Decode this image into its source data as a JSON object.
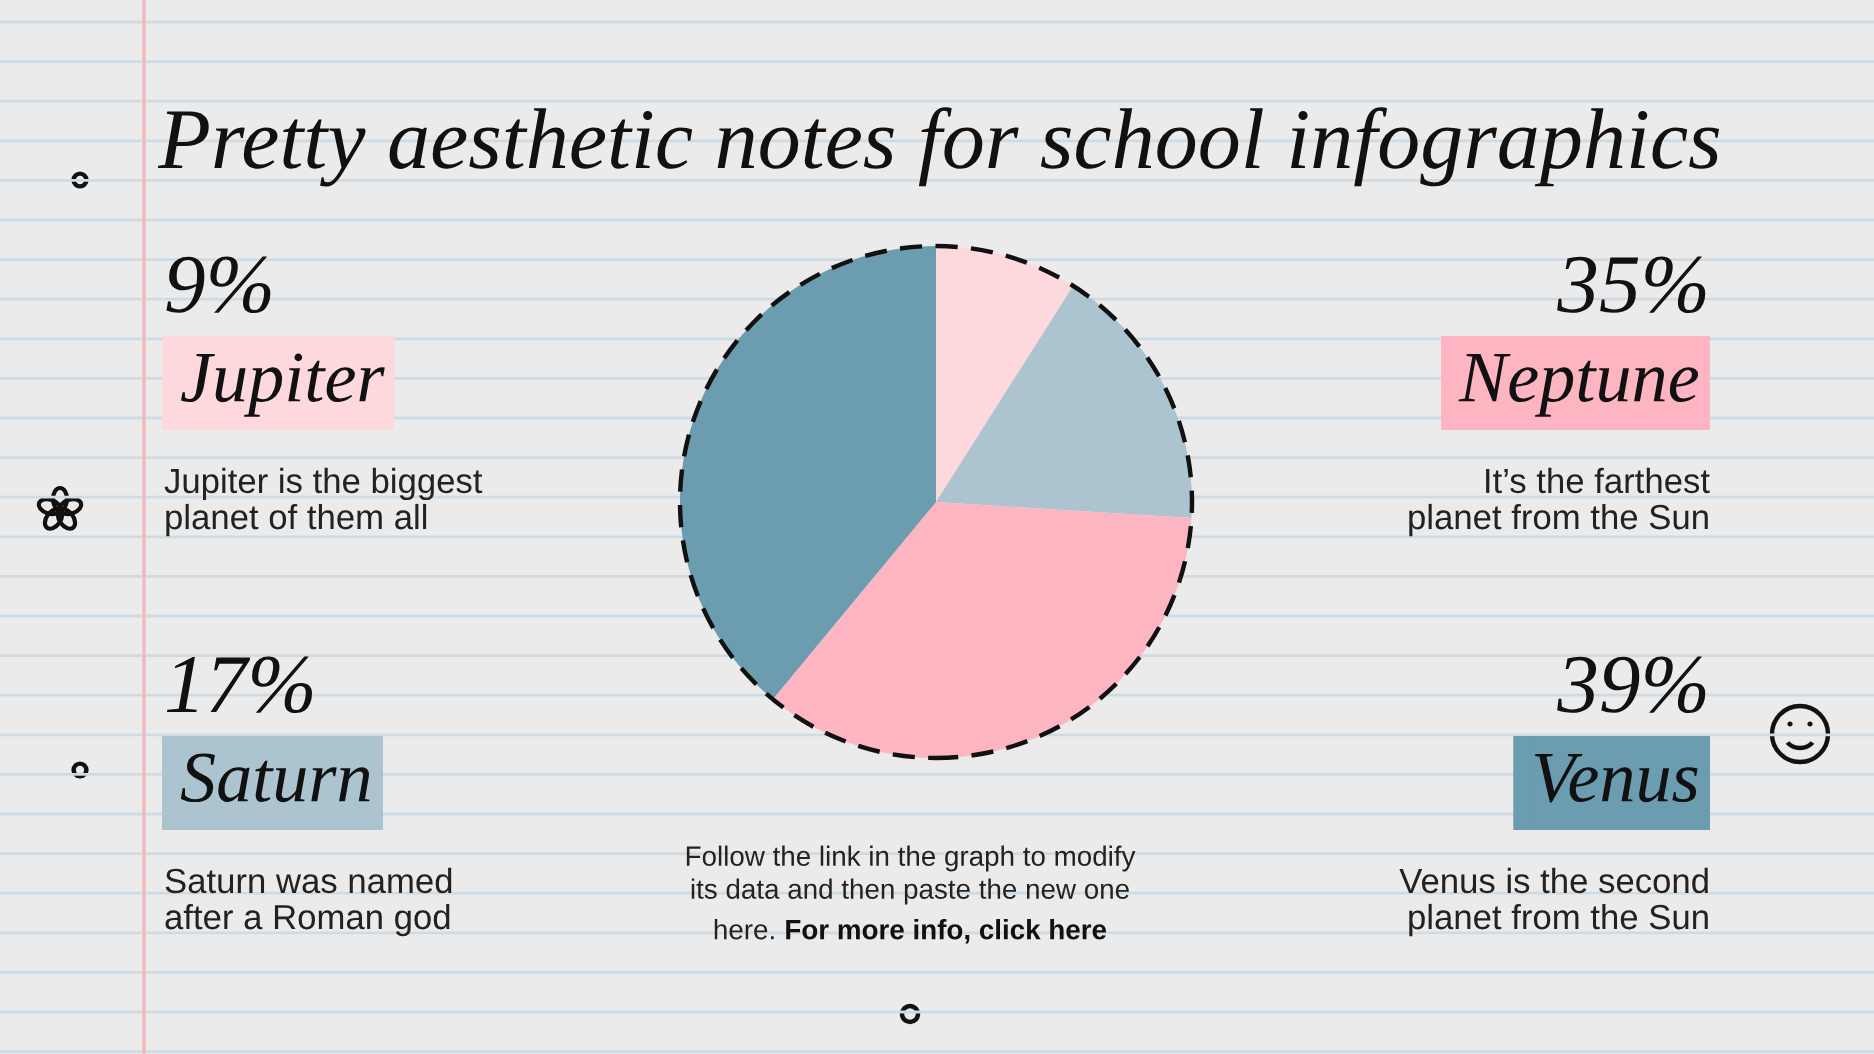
{
  "chart_data": {
    "type": "pie",
    "title": "Pretty aesthetic notes for school infographics",
    "categories": [
      "Jupiter",
      "Saturn",
      "Neptune",
      "Venus"
    ],
    "values": [
      9,
      17,
      35,
      39
    ],
    "colors": [
      "#fdd8dd",
      "#acc4cf",
      "#fdb5c1",
      "#6b9cb0"
    ],
    "value_labels": [
      "9%",
      "17%",
      "35%",
      "39%"
    ],
    "legend": "center",
    "annotations": [
      "Jupiter is the biggest\nplanet of them all",
      "Saturn was named\nafter a Roman god",
      "It’s the farthest\nplanet from the Sun",
      "Venus is the second\nplanet from the Sun",
      "Follow the link in the graph to modify\nits data and then paste the new one\nhere. For more info, click here"
    ]
  }
}
